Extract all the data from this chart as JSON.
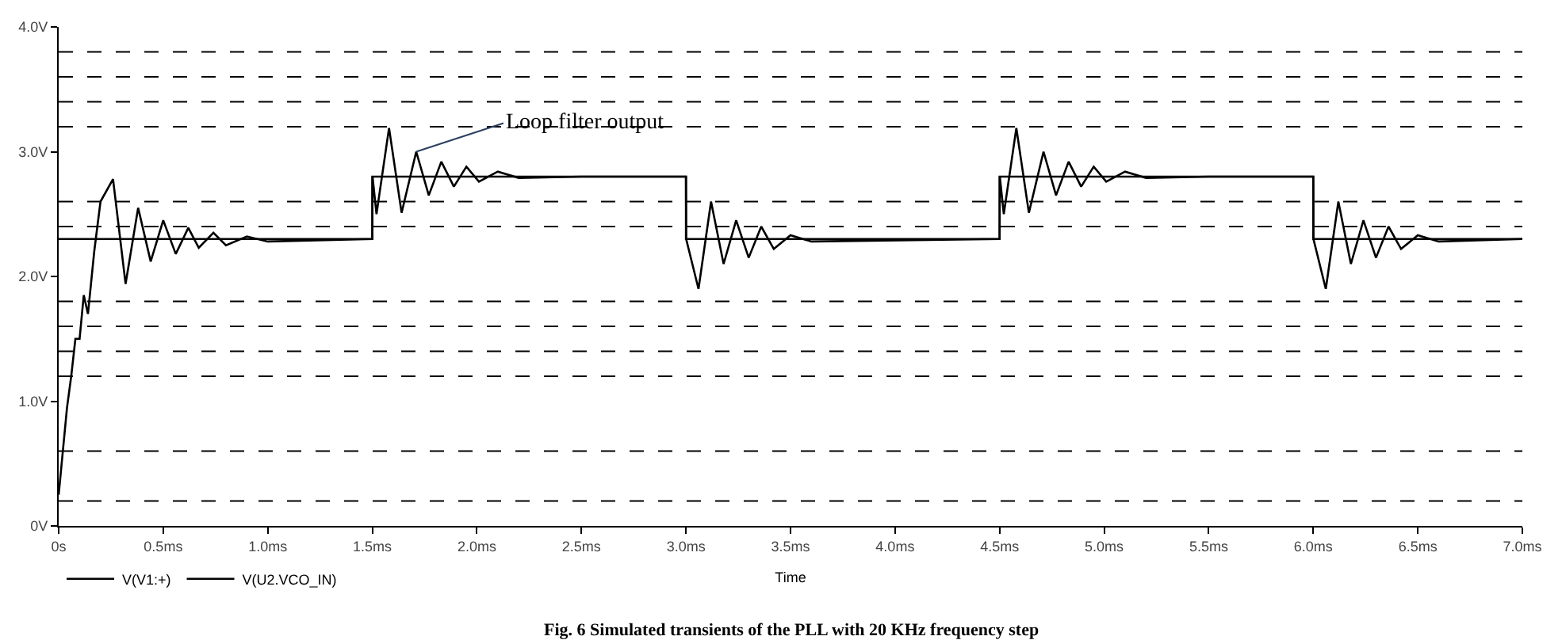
{
  "chart_data": {
    "type": "line",
    "xlabel": "Time",
    "annotations": [
      {
        "text": "Loop filter output",
        "x": 1.71,
        "y": 3.0
      },
      "Fig. 6 Simulated transients of the PLL with 20 KHz frequency step"
    ],
    "xlim": [
      0,
      7
    ],
    "ylim": [
      0,
      4
    ],
    "xticks": [
      {
        "value": 0,
        "label": "0s"
      },
      {
        "value": 0.5,
        "label": "0.5ms"
      },
      {
        "value": 1,
        "label": "1.0ms"
      },
      {
        "value": 1.5,
        "label": "1.5ms"
      },
      {
        "value": 2,
        "label": "2.0ms"
      },
      {
        "value": 2.5,
        "label": "2.5ms"
      },
      {
        "value": 3,
        "label": "3.0ms"
      },
      {
        "value": 3.5,
        "label": "3.5ms"
      },
      {
        "value": 4,
        "label": "4.0ms"
      },
      {
        "value": 4.5,
        "label": "4.5ms"
      },
      {
        "value": 5,
        "label": "5.0ms"
      },
      {
        "value": 5.5,
        "label": "5.5ms"
      },
      {
        "value": 6,
        "label": "6.0ms"
      },
      {
        "value": 6.5,
        "label": "6.5ms"
      },
      {
        "value": 7,
        "label": "7.0ms"
      }
    ],
    "yticks": [
      {
        "value": 0,
        "label": "0V"
      },
      {
        "value": 1,
        "label": "1.0V"
      },
      {
        "value": 2,
        "label": "2.0V"
      },
      {
        "value": 3,
        "label": "3.0V"
      },
      {
        "value": 4,
        "label": "4.0V"
      }
    ],
    "grid": false,
    "legend": "bottom left",
    "marker": "none",
    "line_style": "solid",
    "ref_lines": [
      {
        "axis": "y",
        "value": 0.2,
        "line_style": "dashed",
        "color": "#000000"
      },
      {
        "axis": "y",
        "value": 0.6,
        "line_style": "dashed",
        "color": "#000000"
      },
      {
        "axis": "y",
        "value": 1.2,
        "line_style": "dashed",
        "color": "#000000"
      },
      {
        "axis": "y",
        "value": 1.4,
        "line_style": "dashed",
        "color": "#000000"
      },
      {
        "axis": "y",
        "value": 1.6,
        "line_style": "dashed",
        "color": "#000000"
      },
      {
        "axis": "y",
        "value": 1.8,
        "line_style": "dashed",
        "color": "#000000"
      },
      {
        "axis": "y",
        "value": 2.4,
        "line_style": "dashed",
        "color": "#000000"
      },
      {
        "axis": "y",
        "value": 2.6,
        "line_style": "dashed",
        "color": "#000000"
      },
      {
        "axis": "y",
        "value": 3.2,
        "line_style": "dashed",
        "color": "#000000"
      },
      {
        "axis": "y",
        "value": 3.4,
        "line_style": "dashed",
        "color": "#000000"
      },
      {
        "axis": "y",
        "value": 3.6,
        "line_style": "dashed",
        "color": "#000000"
      },
      {
        "axis": "y",
        "value": 3.8,
        "line_style": "dashed",
        "color": "#000000"
      }
    ],
    "series": [
      {
        "name": "V(V1:+)",
        "type": "step",
        "color": "#000000",
        "x": [
          0,
          1.5,
          3,
          4.5,
          6,
          7
        ],
        "values": [
          2.3,
          2.8,
          2.3,
          2.8,
          2.3,
          2.3
        ]
      },
      {
        "name": "V(U2.VCO_IN)",
        "color": "#000000",
        "x": [
          0,
          0.02,
          0.04,
          0.06,
          0.08,
          0.1,
          0.12,
          0.14,
          0.17,
          0.2,
          0.26,
          0.32,
          0.38,
          0.44,
          0.5,
          0.56,
          0.62,
          0.67,
          0.74,
          0.8,
          0.9,
          1.0,
          1.5,
          1.501,
          1.52,
          1.58,
          1.64,
          1.71,
          1.77,
          1.83,
          1.89,
          1.95,
          2.01,
          2.1,
          2.2,
          2.5,
          3.0,
          3.001,
          3.06,
          3.12,
          3.18,
          3.24,
          3.3,
          3.36,
          3.42,
          3.5,
          3.6,
          4.5,
          4.501,
          4.52,
          4.58,
          4.64,
          4.71,
          4.77,
          4.83,
          4.89,
          4.95,
          5.01,
          5.1,
          5.2,
          5.5,
          6.0,
          6.001,
          6.06,
          6.12,
          6.18,
          6.24,
          6.3,
          6.36,
          6.42,
          6.5,
          6.6,
          7.0
        ],
        "values": [
          0.25,
          0.6,
          0.95,
          1.2,
          1.5,
          1.5,
          1.85,
          1.7,
          2.2,
          2.6,
          2.78,
          1.94,
          2.55,
          2.12,
          2.45,
          2.18,
          2.39,
          2.23,
          2.35,
          2.25,
          2.32,
          2.28,
          2.3,
          2.8,
          2.5,
          3.19,
          2.51,
          3.0,
          2.65,
          2.92,
          2.72,
          2.88,
          2.76,
          2.84,
          2.79,
          2.8,
          2.8,
          2.3,
          1.9,
          2.6,
          2.1,
          2.45,
          2.15,
          2.4,
          2.22,
          2.33,
          2.28,
          2.3,
          2.8,
          2.5,
          3.19,
          2.51,
          3.0,
          2.65,
          2.92,
          2.72,
          2.88,
          2.76,
          2.84,
          2.79,
          2.8,
          2.8,
          2.3,
          1.9,
          2.6,
          2.1,
          2.45,
          2.15,
          2.4,
          2.22,
          2.33,
          2.28,
          2.3
        ]
      }
    ]
  }
}
